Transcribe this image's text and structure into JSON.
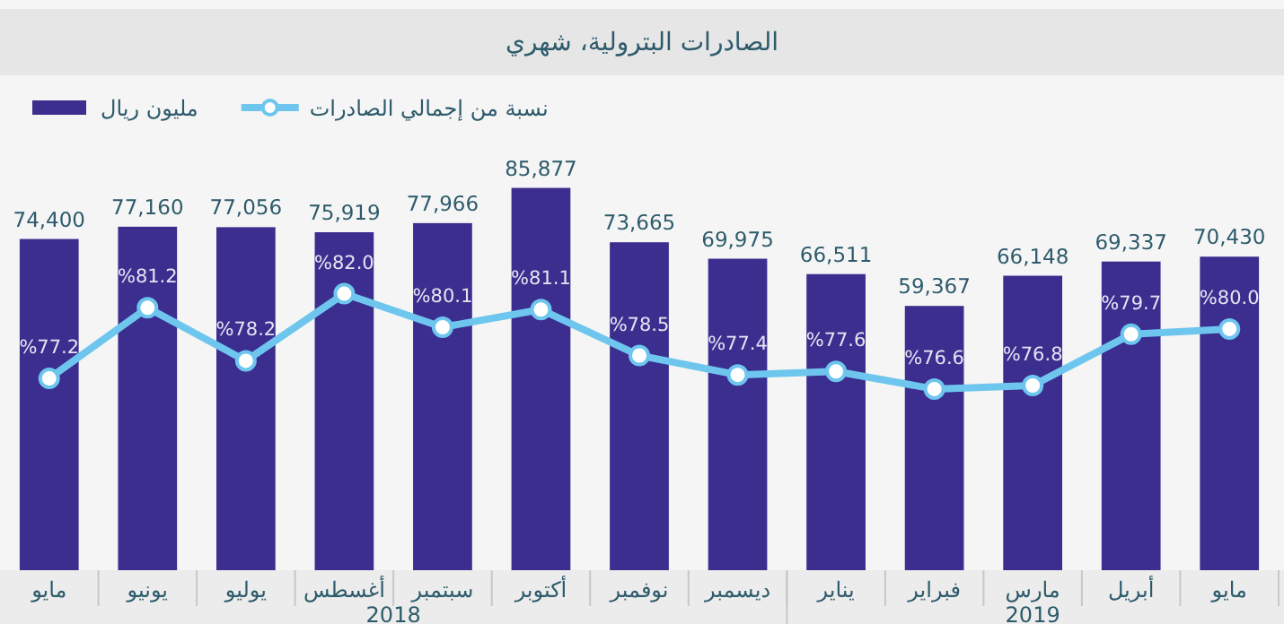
{
  "chart_data": {
    "type": "bar",
    "title": "الصادرات البترولية، شهري",
    "categories": [
      "مايو",
      "يونيو",
      "يوليو",
      "أغسطس",
      "سبتمبر",
      "أكتوبر",
      "نوفمبر",
      "ديسمبر",
      "يناير",
      "فبراير",
      "مارس",
      "أبريل",
      "مايو"
    ],
    "series": [
      {
        "name": "مليون ريال",
        "color": "#3b2e8f",
        "values": [
          74400,
          77160,
          77056,
          75919,
          77966,
          85877,
          73665,
          69975,
          66511,
          59367,
          66148,
          69337,
          70430
        ],
        "value_labels": [
          "74,400",
          "77,160",
          "77,056",
          "75,919",
          "77,966",
          "85,877",
          "73,665",
          "69,975",
          "66,511",
          "59,367",
          "66,148",
          "69,337",
          "70,430"
        ]
      },
      {
        "name": "نسبة من إجمالي الصادرات",
        "type": "line",
        "axis": "y2",
        "color": "#6ec6ee",
        "values": [
          77.2,
          81.2,
          78.2,
          82.0,
          80.1,
          81.1,
          78.5,
          77.4,
          77.6,
          76.6,
          76.8,
          79.7,
          80.0
        ],
        "value_labels": [
          "%77.2",
          "%81.2",
          "%78.2",
          "%82.0",
          "%80.1",
          "%81.1",
          "%78.5",
          "%77.4",
          "%77.6",
          "%76.6",
          "%76.8",
          "%79.7",
          "%80.0"
        ]
      }
    ],
    "tick_labels": "x",
    "marker": "circle",
    "legend": "top left",
    "annotations": [
      "2018",
      "2019"
    ]
  }
}
